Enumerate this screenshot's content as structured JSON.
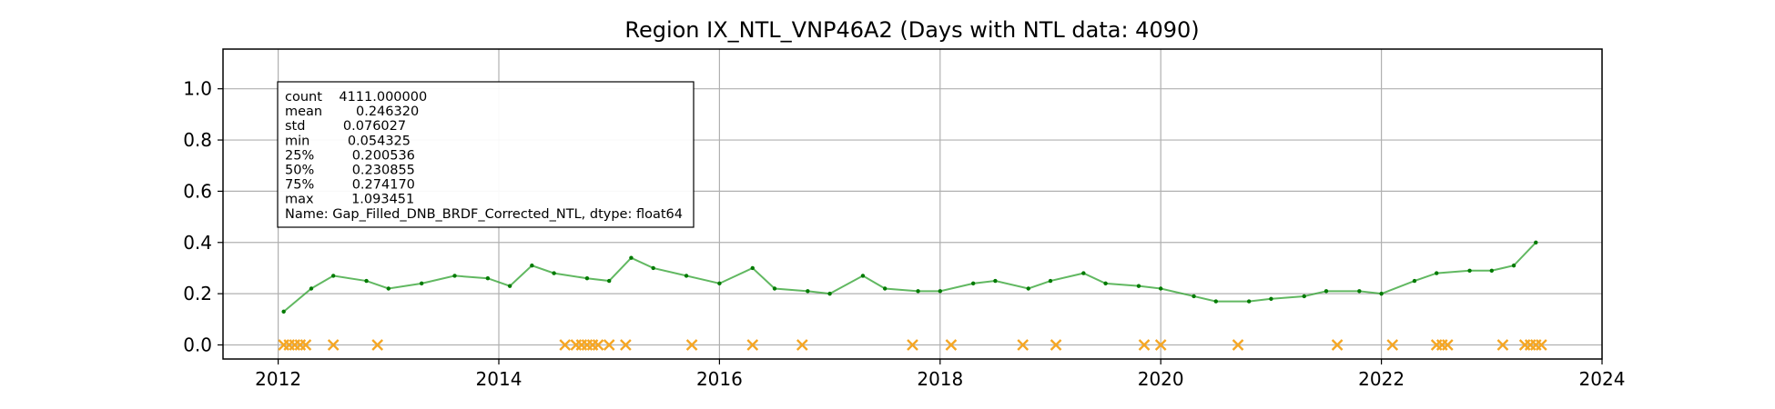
{
  "chart_data": {
    "type": "line",
    "title": "Region IX_NTL_VNP46A2 (Days with NTL data: 4090)",
    "xlabel": "",
    "ylabel": "",
    "xlim": [
      2011.5,
      2024.0
    ],
    "ylim": [
      -0.055,
      1.155
    ],
    "x_ticks": [
      "2012",
      "2014",
      "2016",
      "2018",
      "2020",
      "2022",
      "2024"
    ],
    "y_ticks": [
      "0.0",
      "0.2",
      "0.4",
      "0.6",
      "0.8",
      "1.0"
    ],
    "grid": true,
    "colors": {
      "series": "#2ca02c",
      "trend": "#007a00",
      "gaps": "#f5a623"
    },
    "series": [
      {
        "color": "#2ca02c",
        "x": [
          2012.05,
          2012.3,
          2012.5,
          2012.8,
          2013.0,
          2013.3,
          2013.6,
          2013.9,
          2014.1,
          2014.3,
          2014.5,
          2014.8,
          2015.0,
          2015.2,
          2015.4,
          2015.7,
          2016.0,
          2016.3,
          2016.5,
          2016.8,
          2017.0,
          2017.3,
          2017.5,
          2017.8,
          2018.0,
          2018.3,
          2018.5,
          2018.8,
          2019.0,
          2019.3,
          2019.5,
          2019.8,
          2020.0,
          2020.3,
          2020.5,
          2020.8,
          2021.0,
          2021.3,
          2021.5,
          2021.8,
          2022.0,
          2022.3,
          2022.5,
          2022.8,
          2023.0,
          2023.2,
          2023.4
        ],
        "values": [
          0.13,
          0.22,
          0.27,
          0.25,
          0.22,
          0.24,
          0.27,
          0.26,
          0.23,
          0.31,
          0.28,
          0.26,
          0.25,
          0.34,
          0.3,
          0.27,
          0.24,
          0.3,
          0.22,
          0.21,
          0.2,
          0.27,
          0.22,
          0.21,
          0.21,
          0.24,
          0.25,
          0.22,
          0.25,
          0.28,
          0.24,
          0.23,
          0.22,
          0.19,
          0.17,
          0.17,
          0.18,
          0.19,
          0.21,
          0.21,
          0.2,
          0.25,
          0.28,
          0.29,
          0.29,
          0.31,
          0.4
        ]
      },
      {
        "color": "#f5a623",
        "marker": "x",
        "x": [
          2012.05,
          2012.1,
          2012.15,
          2012.2,
          2012.25,
          2012.5,
          2012.9,
          2014.6,
          2014.7,
          2014.75,
          2014.8,
          2014.85,
          2014.9,
          2015.0,
          2015.15,
          2015.75,
          2016.3,
          2016.75,
          2017.75,
          2018.1,
          2018.75,
          2019.05,
          2019.85,
          2020.0,
          2020.7,
          2021.6,
          2022.1,
          2022.5,
          2022.55,
          2022.6,
          2023.1,
          2023.3,
          2023.35,
          2023.4,
          2023.45
        ],
        "values": [
          0.0,
          0.0,
          0.0,
          0.0,
          0.0,
          0.0,
          0.0,
          0.0,
          0.0,
          0.0,
          0.0,
          0.0,
          0.0,
          0.0,
          0.0,
          0.0,
          0.0,
          0.0,
          0.0,
          0.0,
          0.0,
          0.0,
          0.0,
          0.0,
          0.0,
          0.0,
          0.0,
          0.0,
          0.0,
          0.0,
          0.0,
          0.0,
          0.0,
          0.0,
          0.0
        ]
      }
    ],
    "stats_box": [
      "count    4111.000000",
      "mean        0.246320",
      "std         0.076027",
      "min         0.054325",
      "25%         0.200536",
      "50%         0.230855",
      "75%         0.274170",
      "max         1.093451",
      "Name: Gap_Filled_DNB_BRDF_Corrected_NTL, dtype: float64"
    ]
  }
}
